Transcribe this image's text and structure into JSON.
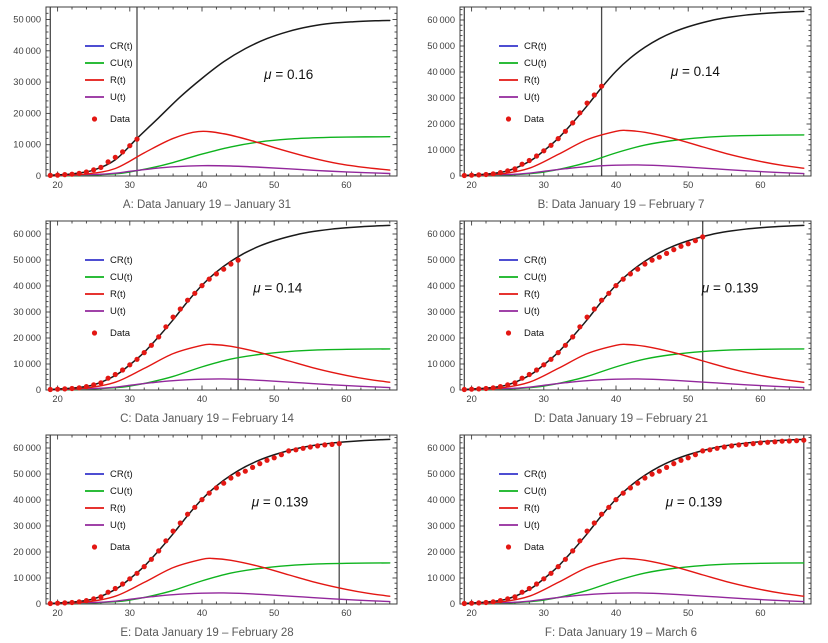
{
  "page": {
    "background": "#ffffff"
  },
  "colors": {
    "CR": "#3434cb",
    "CU": "#0eb31e",
    "R": "#e31713",
    "U": "#93289c",
    "total": "#1a1a1a",
    "data": "#e31713",
    "frame": "#3c3c3c",
    "tick_label": "#404040",
    "caption": "#595959",
    "vline": "#4a4a4a",
    "mu_text": "#111111",
    "legend_text": "#111111"
  },
  "legend": {
    "items": [
      {
        "name": "CR",
        "label": "CR(t)"
      },
      {
        "name": "CU",
        "label": "CU(t)"
      },
      {
        "name": "R",
        "label": "R(t)"
      },
      {
        "name": "U",
        "label": "U(t)"
      },
      {
        "name": "Data",
        "label": "Data"
      }
    ]
  },
  "chart_data": {
    "type": "line",
    "x_axis": {
      "range": [
        18.4,
        67
      ],
      "ticks": [
        20,
        30,
        40,
        50,
        60
      ]
    },
    "observed": {
      "label": "Data",
      "days": [
        19,
        20,
        21,
        22,
        23,
        24,
        25,
        26,
        27,
        28,
        29,
        30,
        31,
        32,
        33,
        34,
        35,
        36,
        37,
        38,
        39,
        40,
        41,
        42,
        43,
        44,
        45,
        46,
        47,
        48,
        49,
        50,
        51,
        52,
        53,
        54,
        55,
        56,
        57,
        58,
        59,
        60,
        61,
        62,
        63,
        64,
        65,
        66
      ],
      "values": [
        200,
        300,
        440,
        570,
        830,
        1290,
        1980,
        2740,
        4520,
        5970,
        7710,
        9690,
        11790,
        14380,
        17200,
        20440,
        24320,
        28020,
        31160,
        34550,
        37200,
        40170,
        42640,
        44650,
        46470,
        48470,
        49970,
        51090,
        52530,
        53990,
        55250,
        56250,
        57420,
        58880,
        59300,
        59900,
        60400,
        60800,
        61200,
        61400,
        61700,
        62000,
        62200,
        62400,
        62600,
        62700,
        62800,
        63000
      ]
    },
    "models": {
      "A": {
        "total": [
          [
            19,
            250
          ],
          [
            22,
            700
          ],
          [
            25,
            1900
          ],
          [
            28,
            5200
          ],
          [
            31,
            12000
          ],
          [
            34,
            18600
          ],
          [
            37,
            25300
          ],
          [
            40,
            31200
          ],
          [
            43,
            36500
          ],
          [
            46,
            40700
          ],
          [
            49,
            43900
          ],
          [
            52,
            46200
          ],
          [
            55,
            47800
          ],
          [
            58,
            48800
          ],
          [
            61,
            49300
          ],
          [
            64,
            49600
          ],
          [
            66,
            49700
          ]
        ],
        "CU": [
          [
            19,
            30
          ],
          [
            24,
            250
          ],
          [
            28,
            700
          ],
          [
            30,
            1300
          ],
          [
            33,
            2600
          ],
          [
            36,
            4300
          ],
          [
            40,
            7000
          ],
          [
            44,
            9300
          ],
          [
            48,
            10900
          ],
          [
            52,
            11800
          ],
          [
            56,
            12250
          ],
          [
            60,
            12450
          ],
          [
            66,
            12550
          ]
        ],
        "R": [
          [
            19,
            120
          ],
          [
            24,
            650
          ],
          [
            28,
            2400
          ],
          [
            32,
            7400
          ],
          [
            36,
            12000
          ],
          [
            39.5,
            14200
          ],
          [
            43,
            13500
          ],
          [
            47,
            11200
          ],
          [
            51,
            8400
          ],
          [
            55,
            5900
          ],
          [
            59,
            3900
          ],
          [
            63,
            2600
          ],
          [
            66,
            1900
          ]
        ],
        "U": [
          [
            19,
            60
          ],
          [
            25,
            450
          ],
          [
            28,
            900
          ],
          [
            30,
            1500
          ],
          [
            33,
            2300
          ],
          [
            36,
            2950
          ],
          [
            40,
            3300
          ],
          [
            44,
            3200
          ],
          [
            48,
            2800
          ],
          [
            52,
            2300
          ],
          [
            56,
            1750
          ],
          [
            60,
            1300
          ],
          [
            66,
            800
          ]
        ]
      },
      "BF": {
        "total": [
          [
            19,
            250
          ],
          [
            22,
            700
          ],
          [
            25,
            2000
          ],
          [
            28,
            5600
          ],
          [
            30,
            9700
          ],
          [
            32,
            14500
          ],
          [
            34,
            20500
          ],
          [
            36,
            27000
          ],
          [
            38,
            34000
          ],
          [
            40,
            40300
          ],
          [
            42,
            45400
          ],
          [
            44,
            49500
          ],
          [
            46,
            52800
          ],
          [
            48,
            55400
          ],
          [
            50,
            57400
          ],
          [
            52,
            59000
          ],
          [
            54,
            60300
          ],
          [
            56,
            61200
          ],
          [
            58,
            61900
          ],
          [
            60,
            62400
          ],
          [
            62,
            62800
          ],
          [
            64,
            63100
          ],
          [
            66,
            63300
          ]
        ],
        "CU": [
          [
            19,
            40
          ],
          [
            24,
            300
          ],
          [
            28,
            900
          ],
          [
            30,
            1500
          ],
          [
            33,
            3100
          ],
          [
            36,
            5200
          ],
          [
            40,
            8900
          ],
          [
            44,
            11900
          ],
          [
            48,
            13700
          ],
          [
            52,
            14800
          ],
          [
            56,
            15400
          ],
          [
            60,
            15650
          ],
          [
            66,
            15800
          ]
        ],
        "R": [
          [
            19,
            150
          ],
          [
            24,
            800
          ],
          [
            28,
            3000
          ],
          [
            32,
            8300
          ],
          [
            36,
            14000
          ],
          [
            40,
            17200
          ],
          [
            41.5,
            17500
          ],
          [
            44,
            16800
          ],
          [
            48,
            14400
          ],
          [
            52,
            11200
          ],
          [
            56,
            8100
          ],
          [
            60,
            5600
          ],
          [
            63,
            4100
          ],
          [
            66,
            3000
          ]
        ],
        "U": [
          [
            19,
            70
          ],
          [
            25,
            550
          ],
          [
            28,
            1100
          ],
          [
            30,
            1800
          ],
          [
            33,
            2800
          ],
          [
            36,
            3600
          ],
          [
            40,
            4150
          ],
          [
            43,
            4250
          ],
          [
            46,
            4000
          ],
          [
            50,
            3400
          ],
          [
            54,
            2700
          ],
          [
            58,
            2000
          ],
          [
            62,
            1400
          ],
          [
            66,
            950
          ]
        ]
      }
    },
    "panels": [
      {
        "id": "A",
        "caption": "A: Data January 19 – January 31",
        "mu_label": "μ = 0.16",
        "mu_pos": [
          52,
          31000
        ],
        "y_range": [
          0,
          54000
        ],
        "y_ticks": [
          0,
          10000,
          20000,
          30000,
          40000,
          50000
        ],
        "y_tick_labels": [
          "0",
          "10 000",
          "20 000",
          "30 000",
          "40 000",
          "50 000"
        ],
        "vlines": [
          19,
          31
        ],
        "data_end_day": 31,
        "model": "A"
      },
      {
        "id": "B",
        "caption": "B: Data January 19 – February 7",
        "mu_label": "μ = 0.14",
        "mu_pos": [
          51,
          38500
        ],
        "y_range": [
          0,
          65000
        ],
        "y_ticks": [
          0,
          10000,
          20000,
          30000,
          40000,
          50000,
          60000
        ],
        "y_tick_labels": [
          "0",
          "10 000",
          "20 000",
          "30 000",
          "40 000",
          "50 000",
          "60 000"
        ],
        "vlines": [
          19,
          38
        ],
        "data_end_day": 38,
        "model": "BF"
      },
      {
        "id": "C",
        "caption": "C: Data January 19 – February 14",
        "mu_label": "μ = 0.14",
        "mu_pos": [
          50.5,
          37500
        ],
        "y_range": [
          0,
          65000
        ],
        "y_ticks": [
          0,
          10000,
          20000,
          30000,
          40000,
          50000,
          60000
        ],
        "y_tick_labels": [
          "0",
          "10 000",
          "20 000",
          "30 000",
          "40 000",
          "50 000",
          "60 000"
        ],
        "vlines": [
          19,
          45
        ],
        "data_end_day": 45,
        "model": "BF"
      },
      {
        "id": "D",
        "caption": "D: Data January 19 – February 21",
        "mu_label": "μ = 0.139",
        "mu_pos": [
          55.8,
          37500
        ],
        "y_range": [
          0,
          65000
        ],
        "y_ticks": [
          0,
          10000,
          20000,
          30000,
          40000,
          50000,
          60000
        ],
        "y_tick_labels": [
          "0",
          "10 000",
          "20 000",
          "30 000",
          "40 000",
          "50 000",
          "60 000"
        ],
        "vlines": [
          19,
          52
        ],
        "data_end_day": 52,
        "model": "BF"
      },
      {
        "id": "E",
        "caption": "E: Data January 19 – February 28",
        "mu_label": "μ = 0.139",
        "mu_pos": [
          50.8,
          37500
        ],
        "y_range": [
          0,
          65000
        ],
        "y_ticks": [
          0,
          10000,
          20000,
          30000,
          40000,
          50000,
          60000
        ],
        "y_tick_labels": [
          "0",
          "10 000",
          "20 000",
          "30 000",
          "40 000",
          "50 000",
          "60 000"
        ],
        "vlines": [
          19,
          59
        ],
        "data_end_day": 59,
        "model": "BF"
      },
      {
        "id": "F",
        "caption": "F: Data January 19 – March 6",
        "mu_label": "μ = 0.139",
        "mu_pos": [
          50.8,
          37500
        ],
        "y_range": [
          0,
          65000
        ],
        "y_ticks": [
          0,
          10000,
          20000,
          30000,
          40000,
          50000,
          60000
        ],
        "y_tick_labels": [
          "0",
          "10 000",
          "20 000",
          "30 000",
          "40 000",
          "50 000",
          "60 000"
        ],
        "vlines": [
          19,
          66
        ],
        "data_end_day": 66,
        "model": "BF"
      }
    ]
  }
}
